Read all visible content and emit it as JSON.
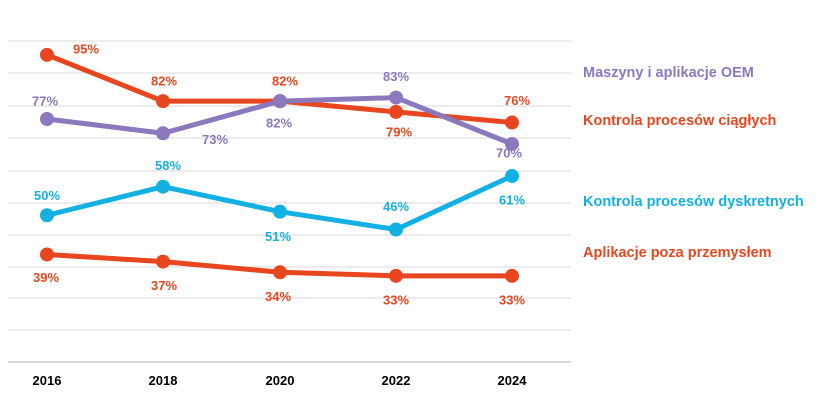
{
  "chart_data": {
    "type": "line",
    "x": [
      "2016",
      "2018",
      "2020",
      "2022",
      "2024"
    ],
    "ylim": [
      0,
      100
    ],
    "grid": true,
    "legend_position": "right",
    "series": [
      {
        "name": "Kontrola procesów ciągłych",
        "color": "#e8461e",
        "values": [
          95,
          82,
          82,
          79,
          76
        ],
        "labels": [
          "95%",
          "82%",
          "82%",
          "79%",
          "76%"
        ]
      },
      {
        "name": "Maszyny i aplikacje OEM",
        "color": "#8b78bd",
        "values": [
          77,
          73,
          82,
          83,
          70
        ],
        "labels": [
          "77%",
          "73%",
          "82%",
          "83%",
          "70%"
        ]
      },
      {
        "name": "Kontrola procesów dyskretnych",
        "color": "#12b0e3",
        "values": [
          50,
          58,
          51,
          46,
          61
        ],
        "labels": [
          "50%",
          "58%",
          "51%",
          "46%",
          "61%"
        ]
      },
      {
        "name": "Aplikacje  poza przemysłem",
        "color": "#e8461e",
        "values": [
          39,
          37,
          34,
          33,
          33
        ],
        "labels": [
          "39%",
          "37%",
          "34%",
          "33%",
          "33%"
        ]
      }
    ]
  }
}
